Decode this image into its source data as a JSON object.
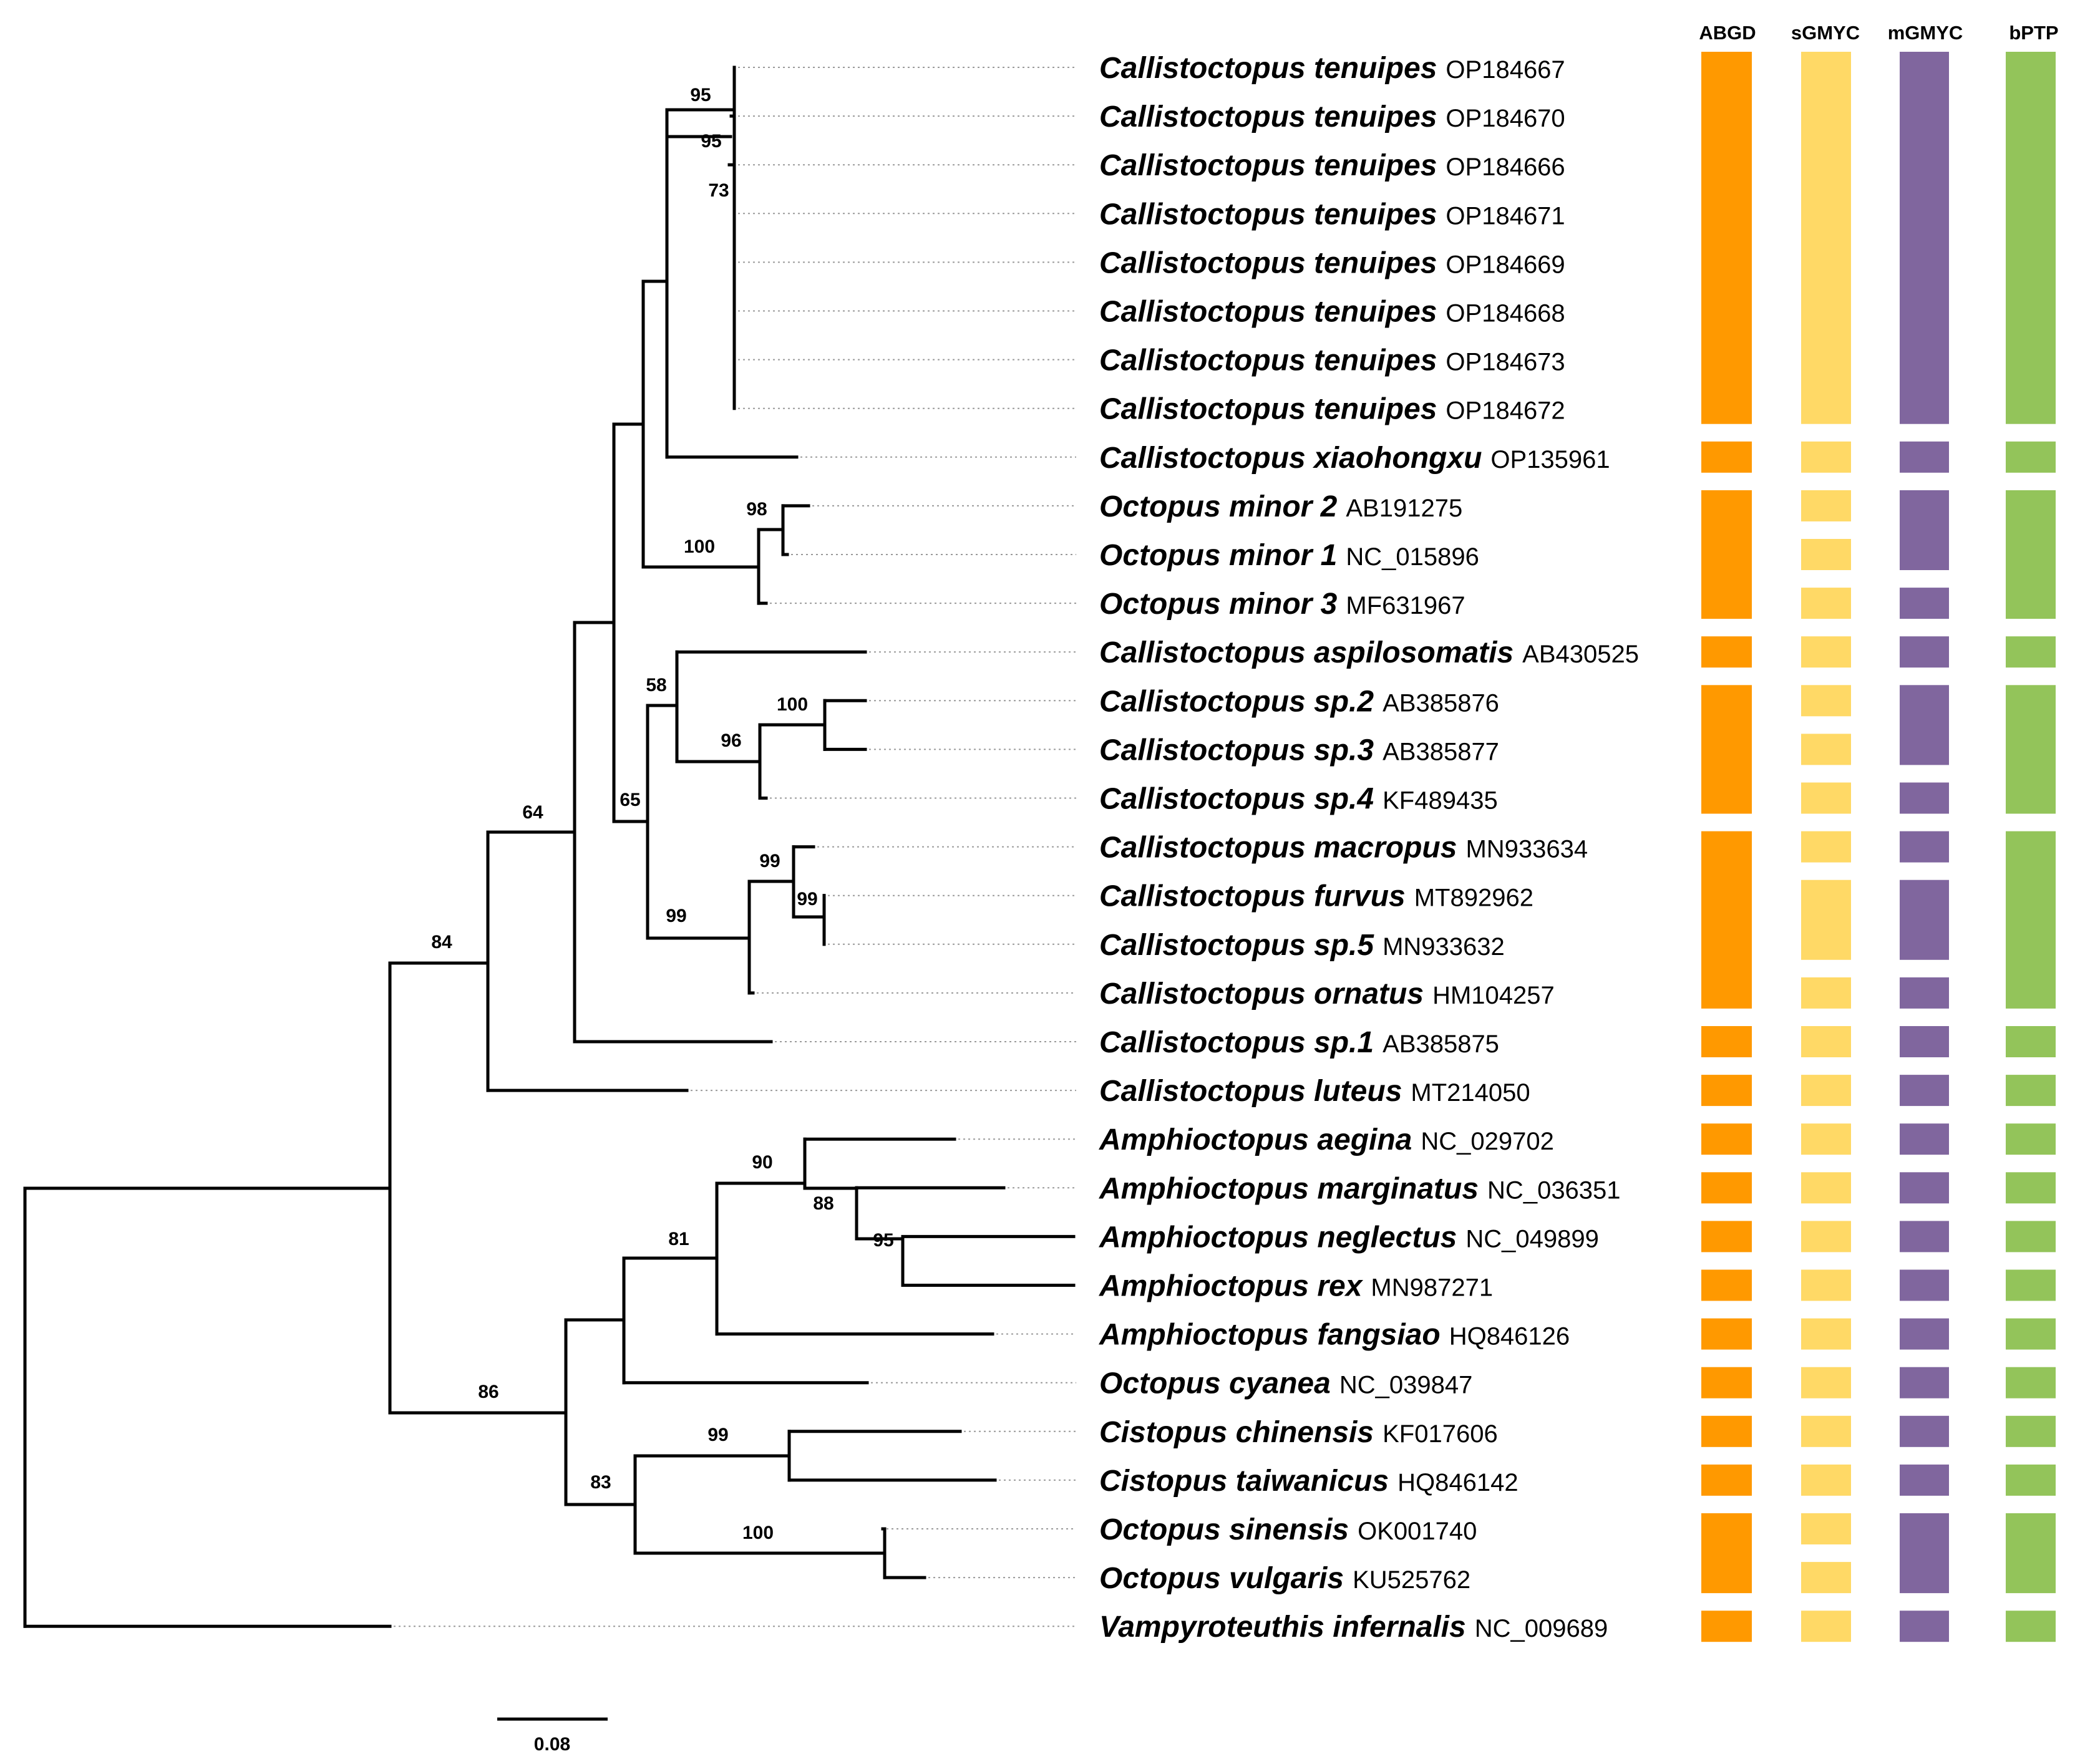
{
  "figure": {
    "columns": [
      "ABGD",
      "sGMYC",
      "mGMYC",
      "bPTP"
    ],
    "colors": {
      "ABGD": "#ff9900",
      "sGMYC": "#ffd966",
      "mGMYC": "#80669e",
      "bPTP": "#93c45a",
      "branch": "#000000",
      "leader": "#9a9a9a"
    },
    "scale_bar": {
      "label": "0.08",
      "value": 0.08
    }
  },
  "taxa": [
    {
      "species": "Callistoctopus tenuipes",
      "accession": "OP184667"
    },
    {
      "species": "Callistoctopus tenuipes",
      "accession": "OP184670"
    },
    {
      "species": "Callistoctopus tenuipes",
      "accession": "OP184666"
    },
    {
      "species": "Callistoctopus tenuipes",
      "accession": "OP184671"
    },
    {
      "species": "Callistoctopus tenuipes",
      "accession": "OP184669"
    },
    {
      "species": "Callistoctopus tenuipes",
      "accession": "OP184668"
    },
    {
      "species": "Callistoctopus tenuipes",
      "accession": "OP184673"
    },
    {
      "species": "Callistoctopus tenuipes",
      "accession": "OP184672"
    },
    {
      "species": "Callistoctopus xiaohongxu",
      "accession": "OP135961"
    },
    {
      "species": "Octopus minor 2",
      "accession": "AB191275"
    },
    {
      "species": "Octopus minor 1",
      "accession": "NC_015896"
    },
    {
      "species": "Octopus minor 3",
      "accession": "MF631967"
    },
    {
      "species": "Callistoctopus aspilosomatis",
      "accession": "AB430525"
    },
    {
      "species": "Callistoctopus sp.2",
      "accession": "AB385876"
    },
    {
      "species": "Callistoctopus sp.3",
      "accession": "AB385877"
    },
    {
      "species": "Callistoctopus sp.4",
      "accession": "KF489435"
    },
    {
      "species": "Callistoctopus macropus",
      "accession": "MN933634"
    },
    {
      "species": "Callistoctopus furvus",
      "accession": "MT892962"
    },
    {
      "species": "Callistoctopus sp.5",
      "accession": "MN933632"
    },
    {
      "species": "Callistoctopus ornatus",
      "accession": "HM104257"
    },
    {
      "species": "Callistoctopus sp.1",
      "accession": "AB385875"
    },
    {
      "species": "Callistoctopus luteus",
      "accession": "MT214050"
    },
    {
      "species": "Amphioctopus aegina",
      "accession": "NC_029702"
    },
    {
      "species": "Amphioctopus marginatus",
      "accession": "NC_036351"
    },
    {
      "species": "Amphioctopus neglectus",
      "accession": "NC_049899"
    },
    {
      "species": "Amphioctopus rex",
      "accession": "MN987271"
    },
    {
      "species": "Amphioctopus fangsiao",
      "accession": "HQ846126"
    },
    {
      "species": "Octopus cyanea",
      "accession": "NC_039847"
    },
    {
      "species": "Cistopus chinensis",
      "accession": "KF017606"
    },
    {
      "species": "Cistopus taiwanicus",
      "accession": "HQ846142"
    },
    {
      "species": "Octopus sinensis",
      "accession": "OK001740"
    },
    {
      "species": "Octopus vulgaris",
      "accession": "KU525762"
    },
    {
      "species": "Vampyroteuthis infernalis",
      "accession": "NC_009689"
    }
  ],
  "delimitation": {
    "ABGD": [
      [
        0,
        7
      ],
      [
        8,
        8
      ],
      [
        9,
        11
      ],
      [
        12,
        12
      ],
      [
        13,
        15
      ],
      [
        16,
        19
      ],
      [
        20,
        20
      ],
      [
        21,
        21
      ],
      [
        22,
        22
      ],
      [
        23,
        23
      ],
      [
        24,
        24
      ],
      [
        25,
        25
      ],
      [
        26,
        26
      ],
      [
        27,
        27
      ],
      [
        28,
        28
      ],
      [
        29,
        29
      ],
      [
        30,
        31
      ],
      [
        32,
        32
      ]
    ],
    "sGMYC": [
      [
        0,
        7
      ],
      [
        8,
        8
      ],
      [
        9,
        9
      ],
      [
        10,
        10
      ],
      [
        11,
        11
      ],
      [
        12,
        12
      ],
      [
        13,
        13
      ],
      [
        14,
        14
      ],
      [
        15,
        15
      ],
      [
        16,
        16
      ],
      [
        17,
        18
      ],
      [
        19,
        19
      ],
      [
        20,
        20
      ],
      [
        21,
        21
      ],
      [
        22,
        22
      ],
      [
        23,
        23
      ],
      [
        24,
        24
      ],
      [
        25,
        25
      ],
      [
        26,
        26
      ],
      [
        27,
        27
      ],
      [
        28,
        28
      ],
      [
        29,
        29
      ],
      [
        30,
        30
      ],
      [
        31,
        31
      ],
      [
        32,
        32
      ]
    ],
    "mGMYC": [
      [
        0,
        7
      ],
      [
        8,
        8
      ],
      [
        9,
        10
      ],
      [
        11,
        11
      ],
      [
        12,
        12
      ],
      [
        13,
        14
      ],
      [
        15,
        15
      ],
      [
        16,
        16
      ],
      [
        17,
        18
      ],
      [
        19,
        19
      ],
      [
        20,
        20
      ],
      [
        21,
        21
      ],
      [
        22,
        22
      ],
      [
        23,
        23
      ],
      [
        24,
        24
      ],
      [
        25,
        25
      ],
      [
        26,
        26
      ],
      [
        27,
        27
      ],
      [
        28,
        28
      ],
      [
        29,
        29
      ],
      [
        30,
        31
      ],
      [
        32,
        32
      ]
    ],
    "bPTP": [
      [
        0,
        7
      ],
      [
        8,
        8
      ],
      [
        9,
        11
      ],
      [
        12,
        12
      ],
      [
        13,
        15
      ],
      [
        16,
        19
      ],
      [
        20,
        20
      ],
      [
        21,
        21
      ],
      [
        22,
        22
      ],
      [
        23,
        23
      ],
      [
        24,
        24
      ],
      [
        25,
        25
      ],
      [
        26,
        26
      ],
      [
        27,
        27
      ],
      [
        28,
        28
      ],
      [
        29,
        29
      ],
      [
        30,
        31
      ],
      [
        32,
        32
      ]
    ]
  },
  "support_values": [
    "95",
    "95",
    "73",
    "98",
    "100",
    "58",
    "100",
    "96",
    "65",
    "99",
    "99",
    "99",
    "64",
    "84",
    "90",
    "88",
    "95",
    "81",
    "86",
    "99",
    "83",
    "100"
  ],
  "tree": {
    "label": "84",
    "children": [
      {
        "label": "64",
        "children": [
          {
            "children": [
              {
                "children": [
                  {
                    "children": [
                      {
                        "label": "95",
                        "children": [
                          {
                            "tip": 0
                          },
                          {
                            "tip": 1
                          },
                          {
                            "tip": 2
                          },
                          {
                            "tip": 3
                          },
                          {
                            "tip": 4
                          },
                          {
                            "tip": 5
                          },
                          {
                            "tip": 6
                          },
                          {
                            "tip": 7
                          }
                        ]
                      },
                      {
                        "tip": 8
                      }
                    ]
                  },
                  {
                    "label": "100",
                    "children": [
                      {
                        "label": "98",
                        "children": [
                          {
                            "tip": 9
                          },
                          {
                            "tip": 10
                          }
                        ]
                      },
                      {
                        "tip": 11
                      }
                    ]
                  }
                ]
              },
              {
                "label": "65",
                "children": [
                  {
                    "label": "58",
                    "children": [
                      {
                        "tip": 12
                      },
                      {
                        "label": "96",
                        "children": [
                          {
                            "label": "100",
                            "children": [
                              {
                                "tip": 13
                              },
                              {
                                "tip": 14
                              }
                            ]
                          },
                          {
                            "tip": 15
                          }
                        ]
                      }
                    ]
                  },
                  {
                    "label": "99",
                    "children": [
                      {
                        "label": "99",
                        "children": [
                          {
                            "tip": 16
                          },
                          {
                            "label": "99",
                            "children": [
                              {
                                "tip": 17
                              },
                              {
                                "tip": 18
                              }
                            ]
                          }
                        ]
                      },
                      {
                        "tip": 19
                      }
                    ]
                  }
                ]
              }
            ]
          },
          {
            "tip": 20
          }
        ]
      },
      {
        "tip": 21
      }
    ]
  }
}
